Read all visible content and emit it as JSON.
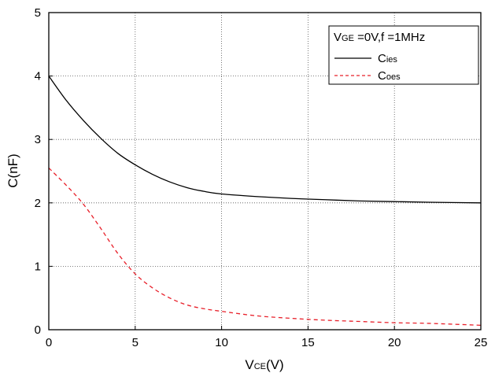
{
  "chart_data": {
    "type": "line",
    "xlabel": {
      "main": "V",
      "sub": "CE",
      "suffix": "(V)"
    },
    "ylabel": "C(nF)",
    "xlim": [
      0,
      25
    ],
    "ylim": [
      0,
      5
    ],
    "x_ticks": [
      "0",
      "5",
      "10",
      "15",
      "20",
      "25"
    ],
    "y_ticks": [
      "0",
      "1",
      "2",
      "3",
      "4",
      "5"
    ],
    "grid": true,
    "legend_position": "top-right",
    "legend_title": {
      "main": "V",
      "sub": "GE",
      "suffix": " =0V,f =1MHz"
    },
    "series": [
      {
        "name": "Cies",
        "name_main": "C",
        "name_sub": "ies",
        "color": "#000000",
        "style": "solid",
        "x": [
          0,
          1,
          2,
          3,
          4,
          5,
          6,
          7,
          8,
          9,
          10,
          12,
          14,
          16,
          18,
          20,
          22,
          25
        ],
        "y": [
          4.0,
          3.62,
          3.3,
          3.02,
          2.78,
          2.6,
          2.45,
          2.33,
          2.24,
          2.18,
          2.14,
          2.1,
          2.07,
          2.05,
          2.03,
          2.02,
          2.01,
          2.0
        ]
      },
      {
        "name": "Coes",
        "name_main": "C",
        "name_sub": "oes",
        "color": "#e8202a",
        "style": "dashed",
        "x": [
          0,
          1,
          2,
          3,
          4,
          5,
          6,
          7,
          8,
          9,
          10,
          12,
          14,
          16,
          18,
          20,
          22,
          25
        ],
        "y": [
          2.55,
          2.28,
          1.98,
          1.6,
          1.2,
          0.88,
          0.66,
          0.5,
          0.39,
          0.33,
          0.29,
          0.22,
          0.18,
          0.15,
          0.13,
          0.11,
          0.1,
          0.07
        ]
      }
    ]
  }
}
